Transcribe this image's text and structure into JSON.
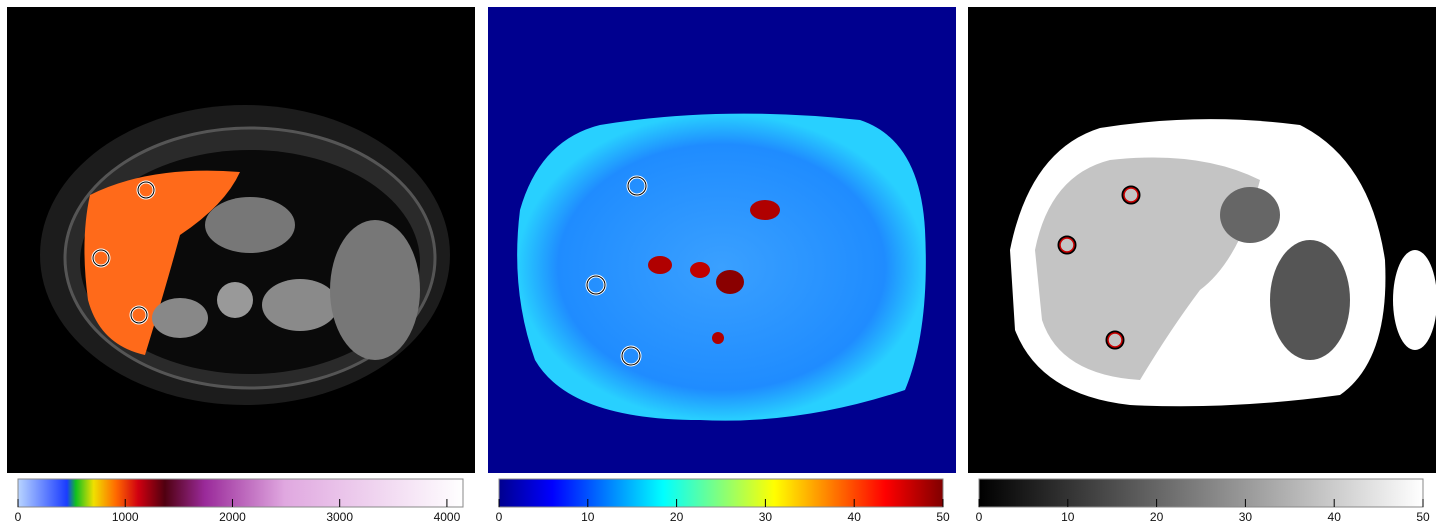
{
  "panels": [
    {
      "colorbar": {
        "lim": [
          0,
          4150
        ],
        "ticks": [
          0,
          1000,
          2000,
          3000,
          4000
        ]
      }
    },
    {
      "colorbar": {
        "lim": [
          0,
          50
        ],
        "ticks": [
          0,
          10,
          20,
          30,
          40,
          50
        ]
      }
    },
    {
      "colorbar": {
        "lim": [
          0,
          50
        ],
        "ticks": [
          0,
          10,
          20,
          30,
          40,
          50
        ]
      }
    }
  ]
}
